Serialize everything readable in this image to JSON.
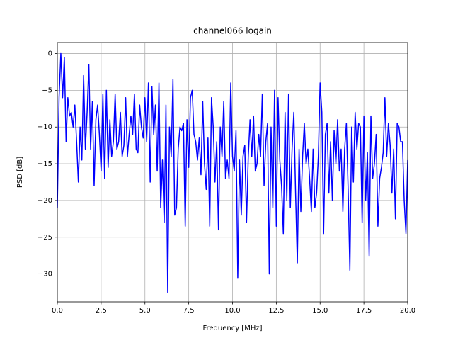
{
  "chart_data": {
    "type": "line",
    "title": "channel066 logain",
    "xlabel": "Frequency [MHz]",
    "ylabel": "PSD [dB]",
    "color": "#0000ff",
    "grid": true,
    "xlim": [
      0,
      20
    ],
    "ylim": [
      -33.8,
      1.5
    ],
    "xticks": [
      {
        "value": 0,
        "label": "0.0"
      },
      {
        "value": 2.5,
        "label": "2.5"
      },
      {
        "value": 5,
        "label": "5.0"
      },
      {
        "value": 7.5,
        "label": "7.5"
      },
      {
        "value": 10,
        "label": "10.0"
      },
      {
        "value": 12.5,
        "label": "12.5"
      },
      {
        "value": 15,
        "label": "15.0"
      },
      {
        "value": 17.5,
        "label": "17.5"
      },
      {
        "value": 20,
        "label": "20.0"
      }
    ],
    "yticks": [
      0,
      {
        "value": -5,
        "label": "−5"
      },
      {
        "value": -10,
        "label": "−10"
      },
      {
        "value": -15,
        "label": "−15"
      },
      {
        "value": -20,
        "label": "−20"
      },
      {
        "value": -25,
        "label": "−25"
      },
      {
        "value": -30,
        "label": "−30"
      }
    ],
    "x": [
      0,
      0.1,
      0.2,
      0.3,
      0.4,
      0.5,
      0.6,
      0.7,
      0.8,
      0.9,
      1,
      1.1,
      1.2,
      1.3,
      1.4,
      1.5,
      1.6,
      1.7,
      1.8,
      1.9,
      2,
      2.1,
      2.2,
      2.3,
      2.4,
      2.5,
      2.6,
      2.7,
      2.8,
      2.9,
      3,
      3.1,
      3.2,
      3.3,
      3.4,
      3.5,
      3.6,
      3.7,
      3.8,
      3.9,
      4,
      4.1,
      4.2,
      4.3,
      4.4,
      4.5,
      4.6,
      4.7,
      4.8,
      4.9,
      5,
      5.1,
      5.2,
      5.3,
      5.4,
      5.5,
      5.6,
      5.7,
      5.8,
      5.9,
      6,
      6.1,
      6.2,
      6.3,
      6.4,
      6.5,
      6.6,
      6.7,
      6.8,
      6.9,
      7,
      7.1,
      7.2,
      7.3,
      7.4,
      7.5,
      7.6,
      7.7,
      7.8,
      7.9,
      8,
      8.1,
      8.2,
      8.3,
      8.4,
      8.5,
      8.6,
      8.7,
      8.8,
      8.9,
      9,
      9.1,
      9.2,
      9.3,
      9.4,
      9.5,
      9.6,
      9.7,
      9.8,
      9.9,
      10,
      10.1,
      10.2,
      10.3,
      10.4,
      10.5,
      10.6,
      10.7,
      10.8,
      10.9,
      11,
      11.1,
      11.2,
      11.3,
      11.4,
      11.5,
      11.6,
      11.7,
      11.8,
      11.9,
      12,
      12.1,
      12.2,
      12.3,
      12.4,
      12.5,
      12.6,
      12.7,
      12.8,
      12.9,
      13,
      13.1,
      13.2,
      13.3,
      13.4,
      13.5,
      13.6,
      13.7,
      13.8,
      13.9,
      14,
      14.1,
      14.2,
      14.3,
      14.4,
      14.5,
      14.6,
      14.7,
      14.8,
      14.9,
      15,
      15.1,
      15.2,
      15.3,
      15.4,
      15.5,
      15.6,
      15.7,
      15.8,
      15.9,
      16,
      16.1,
      16.2,
      16.3,
      16.4,
      16.5,
      16.6,
      16.7,
      16.8,
      16.9,
      17,
      17.1,
      17.2,
      17.3,
      17.4,
      17.5,
      17.6,
      17.7,
      17.8,
      17.9,
      18,
      18.1,
      18.2,
      18.3,
      18.4,
      18.5,
      18.6,
      18.7,
      18.8,
      18.9,
      19,
      19.1,
      19.2,
      19.3,
      19.4,
      19.5,
      19.6,
      19.7,
      19.8,
      19.9,
      20
    ],
    "values": [
      -21,
      -6,
      0,
      -6,
      -0.5,
      -12,
      -6,
      -8.5,
      -8,
      -10,
      -7,
      -12,
      -17.5,
      -10,
      -14.5,
      -3,
      -13,
      -8,
      -1.5,
      -13,
      -6.5,
      -18,
      -9,
      -7,
      -11,
      -16,
      -5.5,
      -17,
      -5,
      -15.5,
      -9,
      -14,
      -12,
      -5.5,
      -13,
      -12,
      -8,
      -14,
      -12.5,
      -6,
      -14,
      -11,
      -8.5,
      -11,
      -5.5,
      -13,
      -13.5,
      -7,
      -10,
      -11.5,
      -6,
      -12,
      -4,
      -17.5,
      -4.5,
      -11,
      -7,
      -16,
      -4,
      -21,
      -14.5,
      -23,
      -7,
      -32.5,
      -10,
      -14,
      -3.5,
      -22,
      -21,
      -13,
      -10,
      -10.5,
      -9.5,
      -23.5,
      -9,
      -15.5,
      -6,
      -5,
      -11,
      -12,
      -14.5,
      -11.5,
      -16.5,
      -6.5,
      -15,
      -18.5,
      -11.5,
      -23.5,
      -6,
      -10,
      -17.5,
      -12,
      -24,
      -10,
      -14,
      -6.5,
      -17,
      -14.5,
      -17,
      -4,
      -14,
      -16,
      -10.5,
      -30.5,
      -14.5,
      -22,
      -14,
      -12.5,
      -23,
      -14,
      -9,
      -14,
      -8.5,
      -16,
      -15,
      -11,
      -14,
      -5.5,
      -18,
      -12,
      -9.5,
      -30,
      -10,
      -21,
      -5,
      -23.5,
      -6,
      -14.5,
      -18,
      -24.5,
      -8,
      -20,
      -5.5,
      -21,
      -13,
      -8,
      -19,
      -28.5,
      -13,
      -21.5,
      -14,
      -9.5,
      -15,
      -13,
      -17,
      -21.5,
      -13,
      -21,
      -19,
      -14,
      -4,
      -8,
      -24.5,
      -11,
      -9.5,
      -19,
      -12,
      -20,
      -10.5,
      -15,
      -9,
      -16,
      -13,
      -21.5,
      -13,
      -9.5,
      -18.5,
      -29.5,
      -10,
      -17.5,
      -8,
      -13,
      -9.5,
      -10,
      -23,
      -8.5,
      -20,
      -13.5,
      -27.5,
      -8.5,
      -17,
      -15,
      -11,
      -23.5,
      -17,
      -15.5,
      -13.5,
      -6,
      -14,
      -9.5,
      -12.5,
      -19,
      -13,
      -22.5,
      -9.5,
      -10,
      -12,
      -12,
      -20,
      -24.5,
      -14.5
    ]
  }
}
